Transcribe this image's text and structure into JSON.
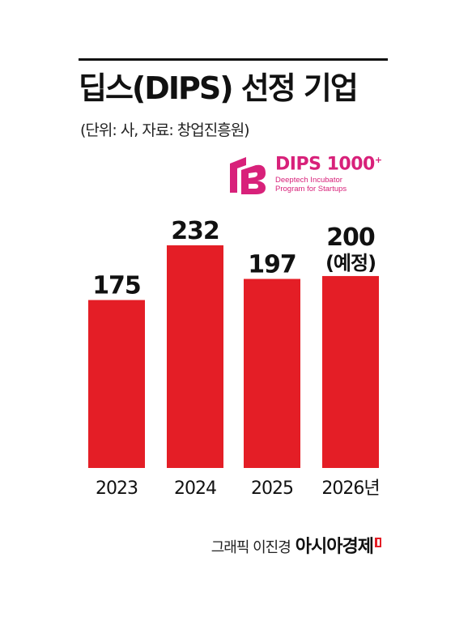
{
  "title": "딥스(DIPS) 선정 기업",
  "subtitle": "(단위: 사, 자료: 창업진흥원)",
  "logo": {
    "brand": "DIPS",
    "brand_number": "1000",
    "brand_sup": "+",
    "desc_line1": "Deeptech Incubator",
    "desc_line2": "Program for Startups",
    "color": "#d8217a"
  },
  "chart_data": {
    "type": "bar",
    "title": "딥스(DIPS) 선정 기업",
    "subtitle": "(단위: 사, 자료: 창업진흥원)",
    "categories": [
      "2023",
      "2024",
      "2025",
      "2026년"
    ],
    "values": [
      175,
      232,
      197,
      200
    ],
    "value_labels": [
      "175",
      "232",
      "197",
      "200"
    ],
    "value_notes": [
      "",
      "",
      "",
      "(예정)"
    ],
    "ylim": [
      0,
      232
    ],
    "bar_color": "#e41e26",
    "grid": false,
    "legend": "none"
  },
  "footer": {
    "credit": "그래픽 이진경",
    "outlet": "아시아경제"
  }
}
